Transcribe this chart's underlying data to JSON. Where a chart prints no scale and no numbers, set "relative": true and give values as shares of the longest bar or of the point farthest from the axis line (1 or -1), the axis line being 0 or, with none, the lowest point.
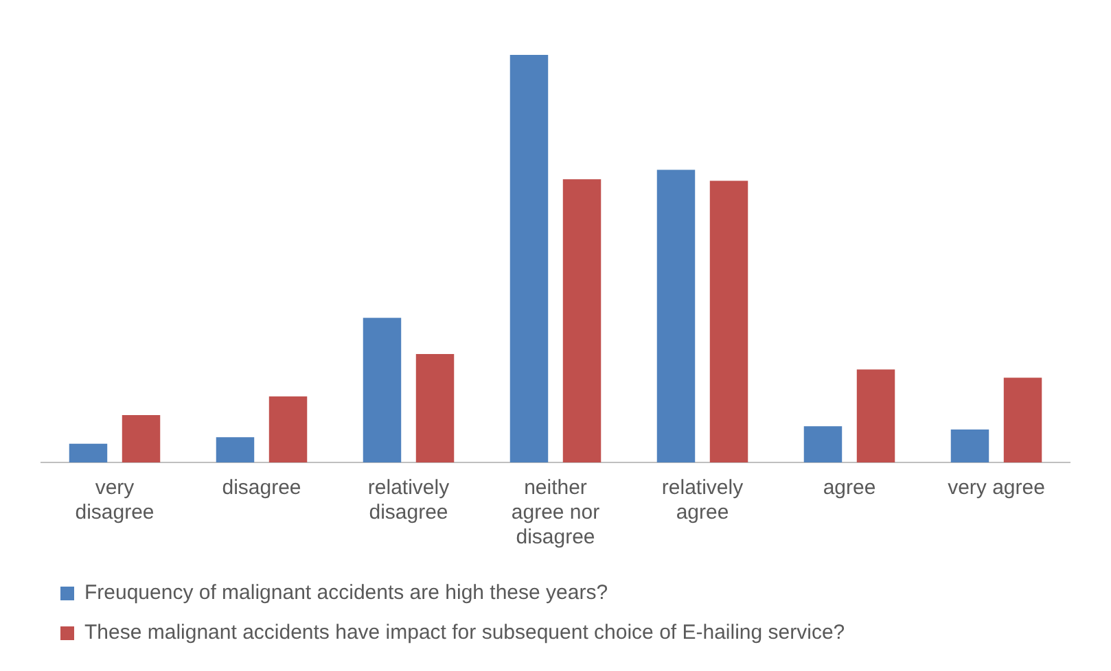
{
  "chart_data": {
    "type": "bar",
    "relative": true,
    "categories": [
      "very disagree",
      "disagree",
      "relatively disagree",
      "neither agree nor disagree",
      "relatively agree",
      "agree",
      "very agree"
    ],
    "series": [
      {
        "name": "Freuquency of malignant accidents are high these years?",
        "color": "#4f81bd",
        "values": [
          0.046,
          0.062,
          0.355,
          1,
          0.718,
          0.089,
          0.081
        ]
      },
      {
        "name": "These malignant accidents have impact for subsequent choice of E-hailing service?",
        "color": "#c0504d",
        "values": [
          0.116,
          0.162,
          0.266,
          0.695,
          0.691,
          0.228,
          0.208
        ]
      }
    ],
    "grid": false,
    "legend": "bottom"
  }
}
